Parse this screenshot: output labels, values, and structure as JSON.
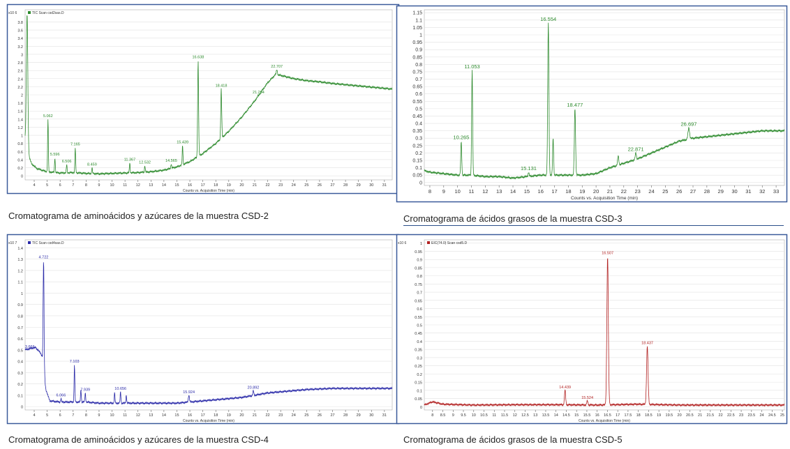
{
  "chart_data": [
    {
      "type": "line",
      "title": "TIC Scan csd2sas.D",
      "xlabel": "Counts vs. Acquisition Time (min)",
      "ylabel": "",
      "y_scale_label": "x10 6",
      "xlim": [
        3.3,
        31.6
      ],
      "ylim": [
        -0.1,
        4.1
      ],
      "x_ticks": [
        "4",
        "5",
        "6",
        "7",
        "8",
        "9",
        "10",
        "11",
        "12",
        "13",
        "14",
        "15",
        "16",
        "17",
        "18",
        "19",
        "20",
        "21",
        "22",
        "23",
        "24",
        "25",
        "26",
        "27",
        "28",
        "29",
        "30",
        "31"
      ],
      "y_ticks": [
        "0",
        "0.2",
        "0.4",
        "0.6",
        "0.8",
        "1",
        "1.2",
        "1.4",
        "1.6",
        "1.8",
        "2",
        "2.2",
        "2.4",
        "2.6",
        "2.8",
        "3",
        "3.2",
        "3.4",
        "3.6",
        "3.8"
      ],
      "color": "#2e8b2e",
      "baseline": [
        [
          3.3,
          0.9
        ],
        [
          3.5,
          0.55
        ],
        [
          3.8,
          0.3
        ],
        [
          4.2,
          0.18
        ],
        [
          5,
          0.1
        ],
        [
          6,
          0.07
        ],
        [
          7,
          0.08
        ],
        [
          8,
          0.06
        ],
        [
          9,
          0.05
        ],
        [
          10,
          0.06
        ],
        [
          11,
          0.07
        ],
        [
          12,
          0.08
        ],
        [
          13,
          0.1
        ],
        [
          14,
          0.14
        ],
        [
          15,
          0.22
        ],
        [
          16,
          0.35
        ],
        [
          17,
          0.55
        ],
        [
          18,
          0.8
        ],
        [
          19,
          1.1
        ],
        [
          20,
          1.45
        ],
        [
          21,
          1.85
        ],
        [
          22,
          2.3
        ],
        [
          22.6,
          2.5
        ],
        [
          23,
          2.48
        ],
        [
          24,
          2.4
        ],
        [
          25,
          2.35
        ],
        [
          26,
          2.32
        ],
        [
          27,
          2.28
        ],
        [
          28,
          2.25
        ],
        [
          29,
          2.22
        ],
        [
          30,
          2.19
        ],
        [
          31,
          2.16
        ],
        [
          31.6,
          2.14
        ]
      ],
      "peaks": [
        {
          "x": 3.45,
          "y": 4.0,
          "w": 0.08
        },
        {
          "x": 5.062,
          "y": 1.4,
          "w": 0.04,
          "label": "5.062"
        },
        {
          "x": 5.596,
          "y": 0.45,
          "w": 0.04,
          "label": "5.596"
        },
        {
          "x": 6.506,
          "y": 0.28,
          "w": 0.04,
          "label": "6.506"
        },
        {
          "x": 7.165,
          "y": 0.7,
          "w": 0.04,
          "label": "7.165"
        },
        {
          "x": 8.459,
          "y": 0.2,
          "w": 0.04,
          "label": "8.459"
        },
        {
          "x": 11.367,
          "y": 0.32,
          "w": 0.04,
          "label": "11.367"
        },
        {
          "x": 12.532,
          "y": 0.25,
          "w": 0.04,
          "label": "12.532"
        },
        {
          "x": 14.565,
          "y": 0.3,
          "w": 0.04,
          "label": "14.565"
        },
        {
          "x": 15.439,
          "y": 0.75,
          "w": 0.04,
          "label": "15.439"
        },
        {
          "x": 16.638,
          "y": 2.85,
          "w": 0.05,
          "label": "16.638"
        },
        {
          "x": 18.418,
          "y": 2.15,
          "w": 0.05,
          "label": "18.418"
        },
        {
          "x": 21.294,
          "y": 1.98,
          "w": 0.05,
          "label": "21.294"
        },
        {
          "x": 22.707,
          "y": 2.62,
          "w": 0.06,
          "label": "22.707"
        }
      ]
    },
    {
      "type": "line",
      "title": "",
      "xlabel": "Counts vs. Acquisition Time (min)",
      "ylabel": "",
      "xlim": [
        7.6,
        33.6
      ],
      "ylim": [
        -0.02,
        1.17
      ],
      "x_ticks": [
        "8",
        "9",
        "10",
        "11",
        "12",
        "13",
        "14",
        "15",
        "16",
        "17",
        "18",
        "19",
        "20",
        "21",
        "22",
        "23",
        "24",
        "25",
        "26",
        "27",
        "28",
        "29",
        "30",
        "31",
        "32",
        "33"
      ],
      "y_ticks": [
        "0",
        "0.05",
        "0.1",
        "0.15",
        "0.2",
        "0.25",
        "0.3",
        "0.35",
        "0.4",
        "0.45",
        "0.5",
        "0.55",
        "0.6",
        "0.65",
        "0.7",
        "0.75",
        "0.8",
        "0.85",
        "0.9",
        "0.95",
        "1",
        "1.05",
        "1.1",
        "1.15"
      ],
      "color": "#2e8b2e",
      "baseline": [
        [
          7.6,
          0.08
        ],
        [
          8,
          0.07
        ],
        [
          9,
          0.06
        ],
        [
          10,
          0.05
        ],
        [
          11,
          0.05
        ],
        [
          12,
          0.04
        ],
        [
          13,
          0.04
        ],
        [
          14,
          0.03
        ],
        [
          15,
          0.04
        ],
        [
          16,
          0.05
        ],
        [
          17,
          0.05
        ],
        [
          18,
          0.05
        ],
        [
          19,
          0.05
        ],
        [
          20,
          0.06
        ],
        [
          21,
          0.1
        ],
        [
          22,
          0.13
        ],
        [
          23,
          0.16
        ],
        [
          24,
          0.2
        ],
        [
          25,
          0.24
        ],
        [
          26,
          0.28
        ],
        [
          27,
          0.3
        ],
        [
          28,
          0.31
        ],
        [
          29,
          0.32
        ],
        [
          30,
          0.33
        ],
        [
          31,
          0.34
        ],
        [
          32,
          0.35
        ],
        [
          33,
          0.35
        ],
        [
          33.6,
          0.35
        ]
      ],
      "peaks": [
        {
          "x": 10.265,
          "y": 0.28,
          "w": 0.05,
          "label": "10.265"
        },
        {
          "x": 11.053,
          "y": 0.76,
          "w": 0.05,
          "label": "11.053"
        },
        {
          "x": 15.131,
          "y": 0.07,
          "w": 0.05,
          "label": "15.131"
        },
        {
          "x": 16.554,
          "y": 1.08,
          "w": 0.06,
          "label": "16.554"
        },
        {
          "x": 16.9,
          "y": 0.3,
          "w": 0.05
        },
        {
          "x": 18.477,
          "y": 0.5,
          "w": 0.06,
          "label": "18.477"
        },
        {
          "x": 21.6,
          "y": 0.18,
          "w": 0.06
        },
        {
          "x": 22.871,
          "y": 0.2,
          "w": 0.06,
          "label": "22.871"
        },
        {
          "x": 26.697,
          "y": 0.37,
          "w": 0.08,
          "label": "26.697"
        }
      ]
    },
    {
      "type": "line",
      "title": "TIC Scan csd4sas.D",
      "xlabel": "Counts vs. Acquisition Time (min)",
      "ylabel": "",
      "y_scale_label": "x10 7",
      "xlim": [
        3.3,
        31.6
      ],
      "ylim": [
        -0.03,
        1.47
      ],
      "x_ticks": [
        "4",
        "5",
        "6",
        "7",
        "8",
        "9",
        "10",
        "11",
        "12",
        "13",
        "14",
        "15",
        "16",
        "17",
        "18",
        "19",
        "20",
        "21",
        "22",
        "23",
        "24",
        "25",
        "26",
        "27",
        "28",
        "29",
        "30",
        "31"
      ],
      "y_ticks": [
        "0",
        "0.1",
        "0.2",
        "0.3",
        "0.4",
        "0.5",
        "0.6",
        "0.7",
        "0.8",
        "0.9",
        "1",
        "1.1",
        "1.2",
        "1.3",
        "1.4"
      ],
      "color": "#2a2aa8",
      "baseline": [
        [
          3.3,
          0.5
        ],
        [
          4,
          0.52
        ],
        [
          4.3,
          0.5
        ],
        [
          4.6,
          0.45
        ],
        [
          4.9,
          0.15
        ],
        [
          5.2,
          0.05
        ],
        [
          6,
          0.04
        ],
        [
          7,
          0.04
        ],
        [
          8,
          0.04
        ],
        [
          9,
          0.03
        ],
        [
          10,
          0.03
        ],
        [
          11,
          0.03
        ],
        [
          12,
          0.03
        ],
        [
          13,
          0.03
        ],
        [
          14,
          0.03
        ],
        [
          15,
          0.03
        ],
        [
          16,
          0.04
        ],
        [
          17,
          0.05
        ],
        [
          18,
          0.06
        ],
        [
          19,
          0.07
        ],
        [
          20,
          0.08
        ],
        [
          21,
          0.1
        ],
        [
          22,
          0.12
        ],
        [
          23,
          0.13
        ],
        [
          24,
          0.14
        ],
        [
          25,
          0.15
        ],
        [
          26,
          0.155
        ],
        [
          27,
          0.16
        ],
        [
          28,
          0.16
        ],
        [
          29,
          0.16
        ],
        [
          30,
          0.16
        ],
        [
          31,
          0.16
        ],
        [
          31.6,
          0.16
        ]
      ],
      "peaks": [
        {
          "x": 3.666,
          "y": 0.5,
          "w": 0.05,
          "label": "3.666"
        },
        {
          "x": 4.1,
          "y": 0.52,
          "w": 0.05
        },
        {
          "x": 4.722,
          "y": 1.29,
          "w": 0.05,
          "label": "4.722"
        },
        {
          "x": 6.066,
          "y": 0.07,
          "w": 0.04,
          "label": "6.066"
        },
        {
          "x": 7.103,
          "y": 0.37,
          "w": 0.04,
          "label": "7.103"
        },
        {
          "x": 7.6,
          "y": 0.15,
          "w": 0.04
        },
        {
          "x": 7.939,
          "y": 0.12,
          "w": 0.04,
          "label": "7.939"
        },
        {
          "x": 10.2,
          "y": 0.12,
          "w": 0.04
        },
        {
          "x": 10.656,
          "y": 0.13,
          "w": 0.04,
          "label": "10.656"
        },
        {
          "x": 11.1,
          "y": 0.1,
          "w": 0.04
        },
        {
          "x": 15.924,
          "y": 0.1,
          "w": 0.06,
          "label": "15.924"
        },
        {
          "x": 20.892,
          "y": 0.14,
          "w": 0.05,
          "label": "20.892"
        }
      ]
    },
    {
      "type": "line",
      "title": "EIC(74.0) Scan csd5.D",
      "xlabel": "Counts vs. Acquisition Time (min)",
      "ylabel": "",
      "y_scale_label": "x10 6",
      "xlim": [
        7.6,
        25.1
      ],
      "ylim": [
        -0.02,
        1.02
      ],
      "x_ticks": [
        "8",
        "8.5",
        "9",
        "9.5",
        "10",
        "10.5",
        "11",
        "11.5",
        "12",
        "12.5",
        "13",
        "13.5",
        "14",
        "14.5",
        "15",
        "15.5",
        "16",
        "16.5",
        "17",
        "17.5",
        "18",
        "18.5",
        "19",
        "19.5",
        "20",
        "20.5",
        "21",
        "21.5",
        "22",
        "22.5",
        "23",
        "23.5",
        "24",
        "24.5",
        "25"
      ],
      "y_ticks": [
        "0",
        "0.05",
        "0.1",
        "0.15",
        "0.2",
        "0.25",
        "0.3",
        "0.35",
        "0.4",
        "0.45",
        "0.5",
        "0.55",
        "0.6",
        "0.65",
        "0.7",
        "0.75",
        "0.8",
        "0.85",
        "0.9",
        "0.95",
        "1"
      ],
      "color": "#b22222",
      "baseline": [
        [
          7.6,
          0.01
        ],
        [
          8,
          0.03
        ],
        [
          8.5,
          0.015
        ],
        [
          10,
          0.01
        ],
        [
          12,
          0.012
        ],
        [
          14,
          0.012
        ],
        [
          16,
          0.01
        ],
        [
          18,
          0.015
        ],
        [
          20,
          0.01
        ],
        [
          22,
          0.01
        ],
        [
          24,
          0.01
        ],
        [
          25.1,
          0.01
        ]
      ],
      "peaks": [
        {
          "x": 14.439,
          "y": 0.1,
          "w": 0.04,
          "label": "14.439"
        },
        {
          "x": 15.524,
          "y": 0.035,
          "w": 0.04,
          "label": "15.524"
        },
        {
          "x": 16.507,
          "y": 0.92,
          "w": 0.05,
          "label": "16.507"
        },
        {
          "x": 18.437,
          "y": 0.37,
          "w": 0.05,
          "label": "18.437"
        }
      ]
    }
  ],
  "captions": {
    "c1": "Cromatograma de aminoácidos y azúcares de la muestra CSD-2",
    "c2": "Cromatograma de ácidos grasos de la muestra CSD-3",
    "c3": "Cromatograma de aminoácidos y azúcares de la muestra CSD-4",
    "c4": "Cromatograma de ácidos grasos de la muestra CSD-5"
  }
}
